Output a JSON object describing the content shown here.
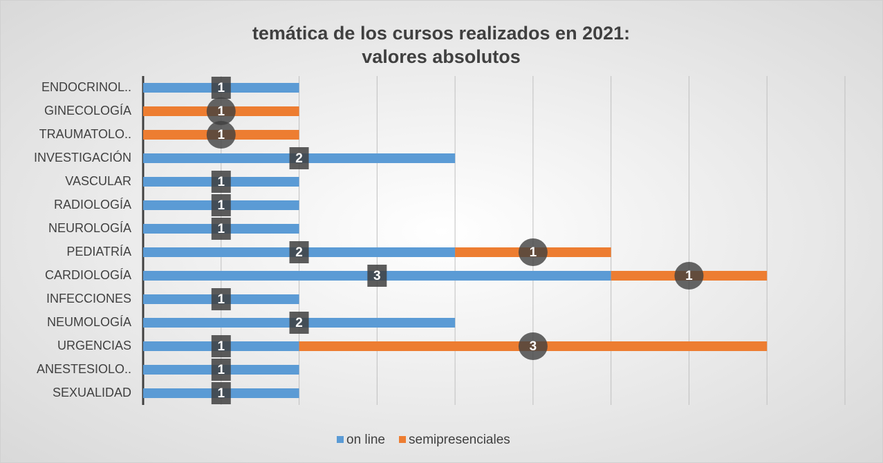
{
  "chart_data": {
    "type": "stacked_barh",
    "title": "temática de los cursos realizados en 2021:",
    "subtitle": "valores absolutos",
    "categories": [
      "ENDOCRINOL..",
      "GINECOLOGÍA",
      "TRAUMATOLO..",
      "INVESTIGACIÓN",
      "VASCULAR",
      "RADIOLOGÍA",
      "NEUROLOGÍA",
      "PEDIATRÍA",
      "CARDIOLOGÍA",
      "INFECCIONES",
      "NEUMOLOGÍA",
      "URGENCIAS",
      "ANESTESIOLO..",
      "SEXUALIDAD"
    ],
    "series": [
      {
        "name": "on line",
        "color": "#5b9bd5",
        "values": [
          1,
          null,
          null,
          2,
          1,
          1,
          1,
          2,
          3,
          1,
          2,
          1,
          1,
          1
        ]
      },
      {
        "name": "semipresenciales",
        "color": "#ed7d31",
        "values": [
          null,
          1,
          1,
          null,
          null,
          null,
          null,
          1,
          1,
          null,
          null,
          3,
          null,
          null
        ]
      }
    ],
    "xlim": [
      0,
      4.5
    ],
    "xticks": [
      0,
      0.5,
      1,
      1.5,
      2,
      2.5,
      3,
      3.5,
      4,
      4.5
    ],
    "grid": true,
    "legend": "bottom"
  }
}
